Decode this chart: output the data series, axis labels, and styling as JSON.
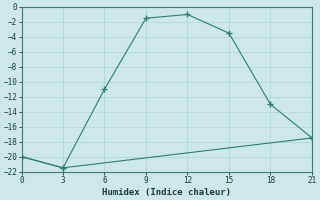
{
  "line1_x": [
    0,
    3,
    6,
    9,
    12,
    15,
    18,
    21
  ],
  "line1_y": [
    -20,
    -21.5,
    -11,
    -1.5,
    -1,
    -3.5,
    -13,
    -17.5
  ],
  "line2_x": [
    0,
    3,
    21
  ],
  "line2_y": [
    -20,
    -21.5,
    -17.5
  ],
  "xlabel": "Humidex (Indice chaleur)",
  "xlim": [
    0,
    21
  ],
  "ylim": [
    -22,
    0
  ],
  "xticks": [
    0,
    3,
    6,
    9,
    12,
    15,
    18,
    21
  ],
  "yticks": [
    0,
    -2,
    -4,
    -6,
    -8,
    -10,
    -12,
    -14,
    -16,
    -18,
    -20,
    -22
  ],
  "line_color": "#2e7d6e",
  "bg_color": "#cce8e8",
  "grid_color": "#b0d4d4",
  "marker": "+",
  "markersize": 4,
  "linewidth": 0.8
}
